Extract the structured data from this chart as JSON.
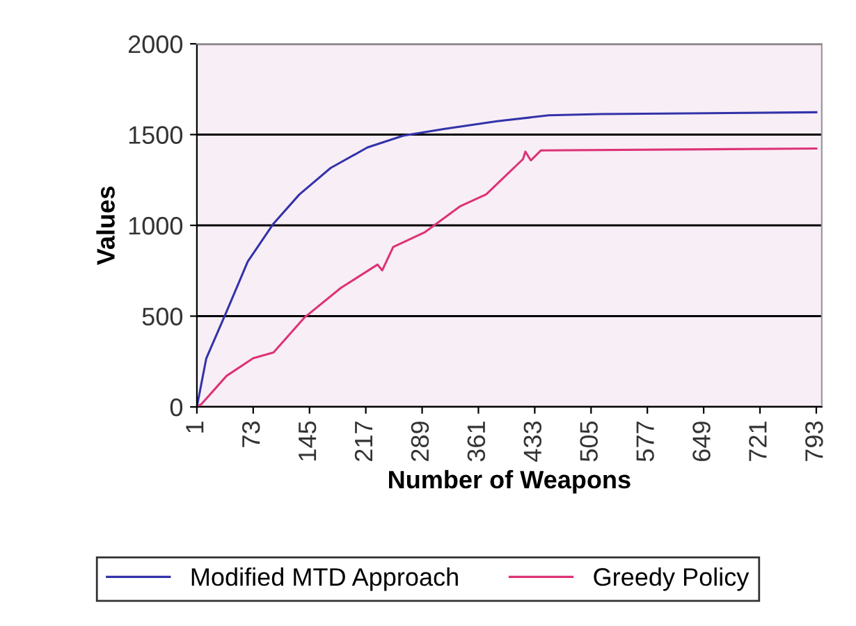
{
  "chart_data": {
    "type": "line",
    "xlabel": "Number of Weapons",
    "ylabel": "Values",
    "xlim": [
      1,
      800
    ],
    "xticks": [
      1,
      73,
      145,
      217,
      289,
      361,
      433,
      505,
      577,
      649,
      721,
      793
    ],
    "ylim": [
      0,
      2000
    ],
    "yticks": [
      0,
      500,
      1000,
      1500,
      2000
    ],
    "grid": "y",
    "legend": "bottom",
    "marker": "none",
    "line_style": "solid",
    "series": [
      {
        "name": "Modified MTD Approach",
        "color": "#3333aa",
        "x": [
          1,
          13,
          39,
          66,
          99,
          132,
          172,
          219,
          265,
          318,
          385,
          451,
          517,
          793
        ],
        "values": [
          0,
          267,
          525,
          800,
          1010,
          1170,
          1316,
          1429,
          1494,
          1532,
          1574,
          1606,
          1613,
          1623
        ]
      },
      {
        "name": "Greedy Policy",
        "color": "#dd3377",
        "x": [
          1,
          7,
          39,
          73,
          99,
          139,
          185,
          232,
          238,
          252,
          292,
          338,
          371,
          418,
          421,
          428,
          441,
          793
        ],
        "values": [
          0,
          16,
          171,
          268,
          300,
          494,
          655,
          784,
          752,
          881,
          961,
          1106,
          1171,
          1365,
          1406,
          1358,
          1413,
          1423
        ]
      }
    ]
  }
}
